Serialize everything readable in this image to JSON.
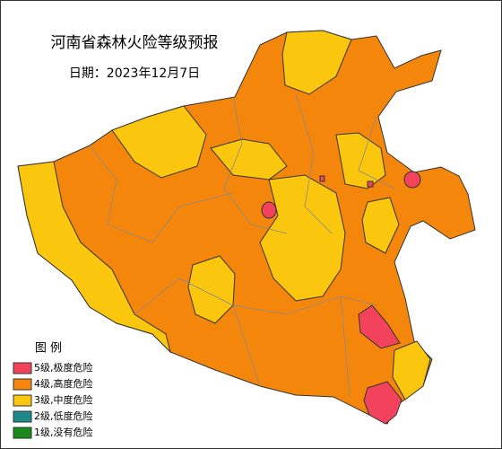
{
  "title": "河南省森林火险等级预报",
  "date": "日期：2023年12月7日",
  "legend": {
    "title": "图 例",
    "items": [
      {
        "label": "5级,极度危险",
        "color": "#f2425c"
      },
      {
        "label": "4级,高度危险",
        "color": "#f5860c"
      },
      {
        "label": "3级,中度危险",
        "color": "#fbc70e"
      },
      {
        "label": "2级,低度危险",
        "color": "#1d8a8a"
      },
      {
        "label": "1级,没有危险",
        "color": "#1a8a1a"
      }
    ]
  }
}
